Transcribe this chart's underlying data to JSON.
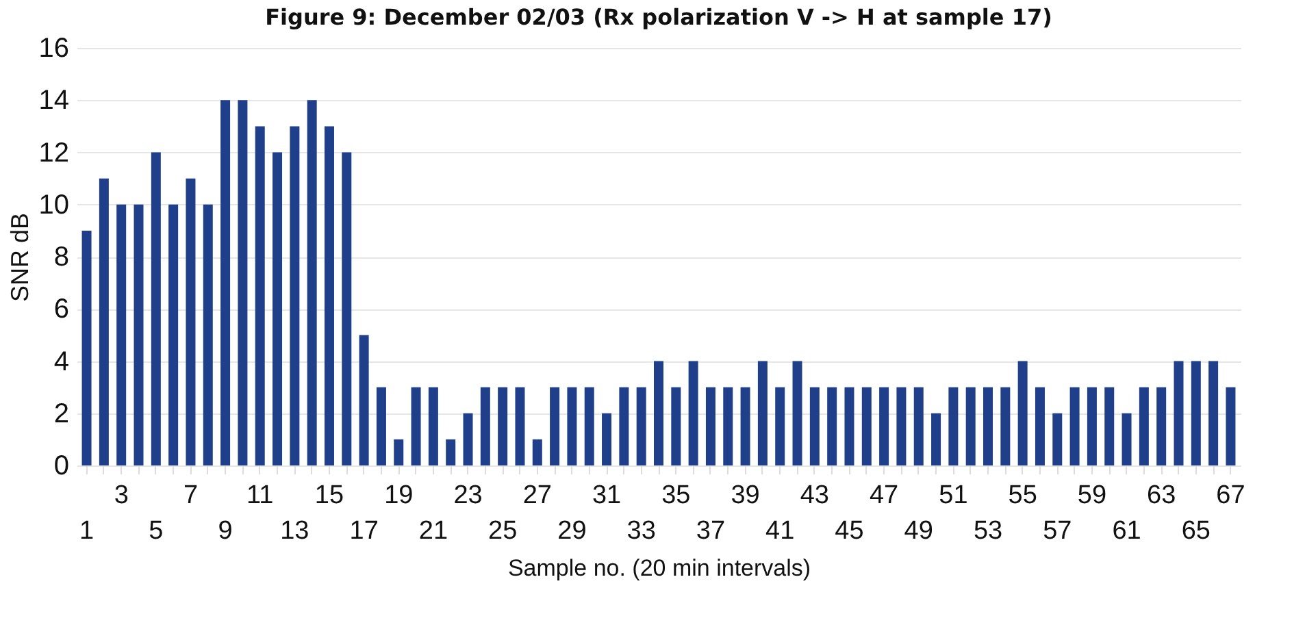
{
  "chart_data": {
    "type": "bar",
    "title": "Figure 9: December 02/03 (Rx polarization V -> H at sample 17)",
    "xlabel": "Sample no. (20 min intervals)",
    "ylabel": "SNR dB",
    "categories": [
      "1",
      null,
      "3",
      null,
      "5",
      null,
      "7",
      null,
      "9",
      null,
      "11",
      null,
      "13",
      null,
      "15",
      null,
      "17",
      null,
      "19",
      null,
      "21",
      null,
      "23",
      null,
      "25",
      null,
      "27",
      null,
      "29",
      null,
      "31",
      null,
      "33",
      null,
      "35",
      null,
      "37",
      null,
      "39",
      null,
      "41",
      null,
      "43",
      null,
      "45",
      null,
      "47",
      null,
      "49",
      null,
      "51",
      null,
      "53",
      null,
      "55",
      null,
      "57",
      null,
      "59",
      null,
      "61",
      null,
      "63",
      null,
      "65",
      null,
      "67"
    ],
    "values": [
      9,
      11,
      10,
      10,
      12,
      10,
      11,
      10,
      14,
      14,
      13,
      12,
      13,
      14,
      13,
      12,
      5,
      3,
      1,
      3,
      3,
      1,
      2,
      3,
      3,
      3,
      1,
      3,
      3,
      3,
      2,
      3,
      3,
      4,
      3,
      4,
      3,
      3,
      3,
      4,
      3,
      4,
      3,
      3,
      3,
      3,
      3,
      3,
      3,
      2,
      3,
      3,
      3,
      3,
      4,
      3,
      2,
      3,
      3,
      3,
      2,
      3,
      3,
      4,
      4,
      4,
      3
    ],
    "color": "#1f3f8a",
    "ylim": [
      0,
      16
    ],
    "yticks": [
      0,
      2,
      4,
      6,
      8,
      10,
      12,
      14,
      16
    ],
    "grid": "y"
  }
}
